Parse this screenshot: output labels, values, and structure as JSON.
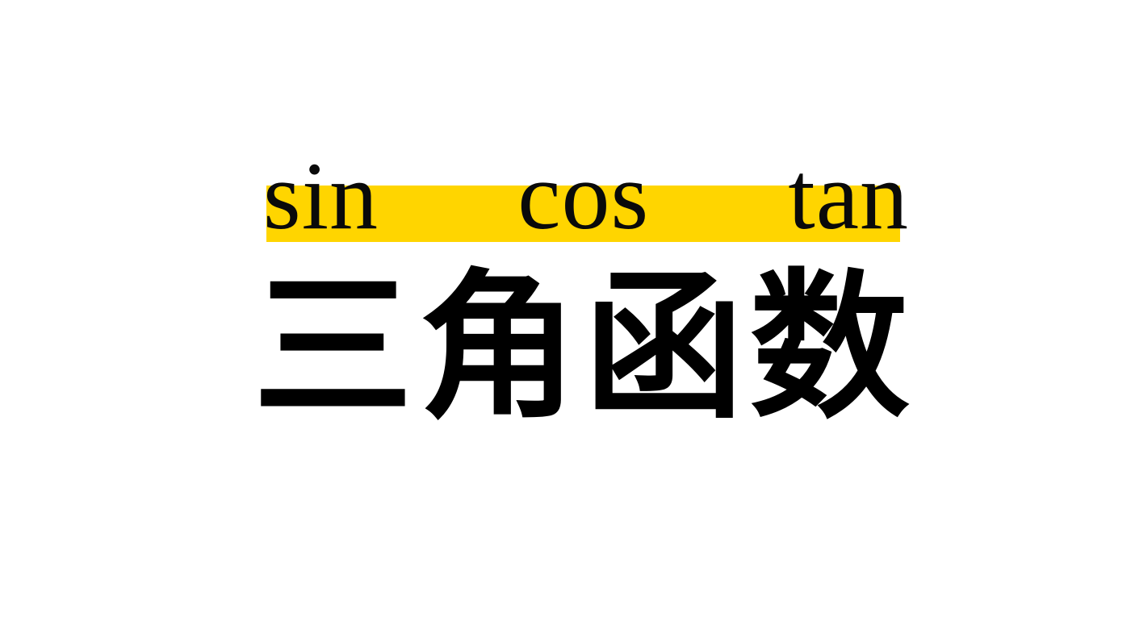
{
  "subtitle": {
    "word1": "sin",
    "word2": "cos",
    "word3": "tan"
  },
  "title": {
    "char1": "三",
    "char2": "角",
    "char3": "函",
    "char4": "数"
  },
  "colors": {
    "highlight": "#FFD500",
    "text": "#000000",
    "background": "#ffffff"
  }
}
